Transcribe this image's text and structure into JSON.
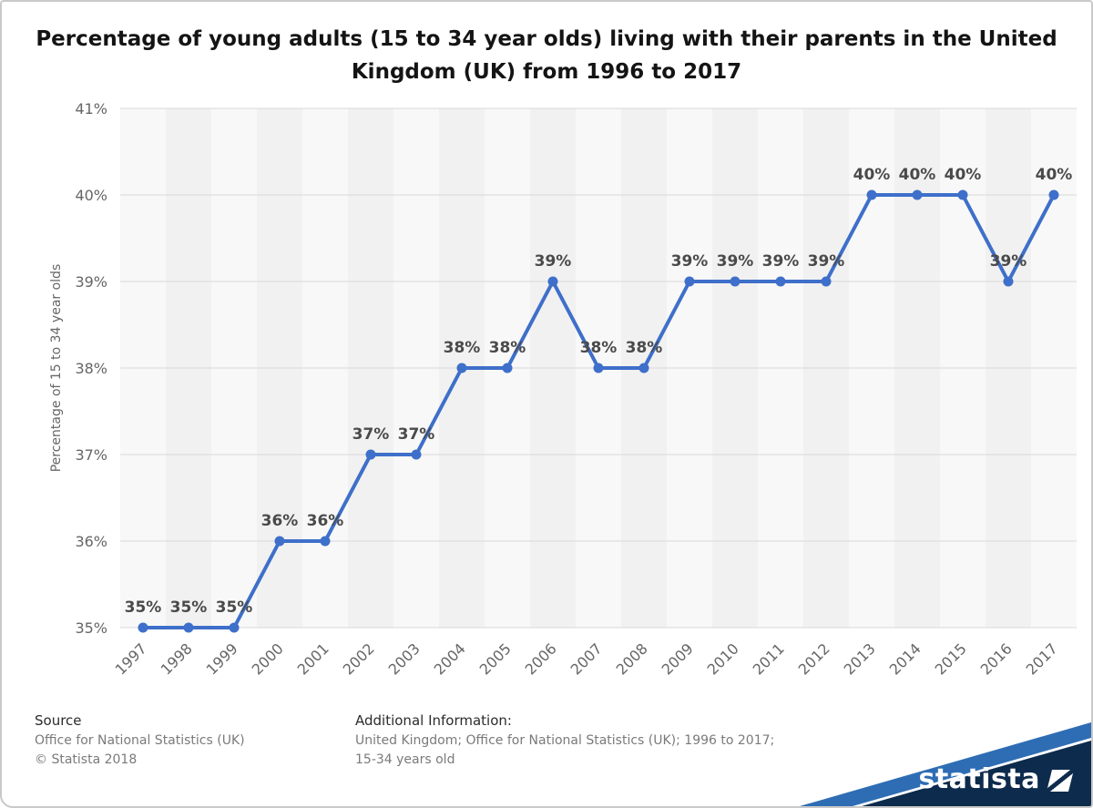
{
  "title": "Percentage of young adults (15 to 34 year olds) living with their parents in the United Kingdom (UK) from 1996 to 2017",
  "chart_data": {
    "type": "line",
    "categories": [
      "1997",
      "1998",
      "1999",
      "2000",
      "2001",
      "2002",
      "2003",
      "2004",
      "2005",
      "2006",
      "2007",
      "2008",
      "2009",
      "2010",
      "2011",
      "2012",
      "2013",
      "2014",
      "2015",
      "2016",
      "2017"
    ],
    "values": [
      35,
      35,
      35,
      36,
      36,
      37,
      37,
      38,
      38,
      39,
      38,
      38,
      39,
      39,
      39,
      39,
      40,
      40,
      40,
      39,
      40
    ],
    "title": "Percentage of young adults (15 to 34 year olds) living with their parents in the United Kingdom (UK) from 1996 to 2017",
    "xlabel": "",
    "ylabel": "Percentage of 15 to 34 year olds",
    "ylim": [
      35,
      41
    ],
    "yticks": [
      35,
      36,
      37,
      38,
      39,
      40,
      41
    ],
    "ytick_suffix": "%",
    "data_label_suffix": "%",
    "grid": true,
    "legend": "none",
    "line_color": "#3e6fca",
    "data_label_color": "#4a4a4a",
    "axis_text_color": "#666666"
  },
  "footer": {
    "source_heading": "Source",
    "source_lines": [
      "Office for National Statistics (UK)",
      "© Statista 2018"
    ],
    "additional_heading": "Additional Information:",
    "additional_lines": [
      "United Kingdom; Office for National Statistics (UK); 1996 to 2017;",
      "15-34 years old"
    ]
  },
  "logo": {
    "text": "statista",
    "bg_color": "#0d2b4c",
    "stripe_color": "#2e6db4"
  }
}
